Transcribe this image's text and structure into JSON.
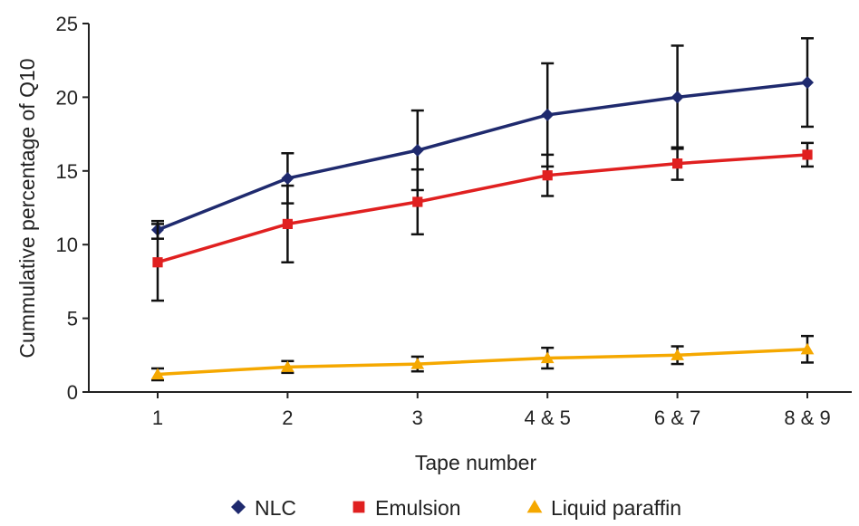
{
  "chart_data": {
    "type": "line",
    "title": "",
    "xlabel": "Tape number",
    "ylabel": "Cummulative percentage of Q10",
    "categories": [
      "1",
      "2",
      "3",
      "4 & 5",
      "6 & 7",
      "8 & 9"
    ],
    "ylim": [
      0,
      25
    ],
    "yticks": [
      "0",
      "5",
      "10",
      "15",
      "20",
      "25"
    ],
    "grid": false,
    "legend_position": "bottom",
    "series": [
      {
        "name": "NLC",
        "marker": "diamond",
        "color": "#1f2a6e",
        "values": [
          11.0,
          14.5,
          16.4,
          18.8,
          20.0,
          21.0
        ],
        "errors": [
          0.6,
          1.7,
          2.7,
          3.5,
          3.5,
          3.0
        ]
      },
      {
        "name": "Emulsion",
        "marker": "square",
        "color": "#e02020",
        "values": [
          8.8,
          11.4,
          12.9,
          14.7,
          15.5,
          16.1
        ],
        "errors": [
          2.6,
          2.6,
          2.2,
          1.4,
          1.1,
          0.8
        ]
      },
      {
        "name": "Liquid paraffin",
        "marker": "triangle",
        "color": "#f5a800",
        "values": [
          1.2,
          1.7,
          1.9,
          2.3,
          2.5,
          2.9
        ],
        "errors": [
          0.4,
          0.4,
          0.5,
          0.7,
          0.6,
          0.9
        ]
      }
    ]
  }
}
